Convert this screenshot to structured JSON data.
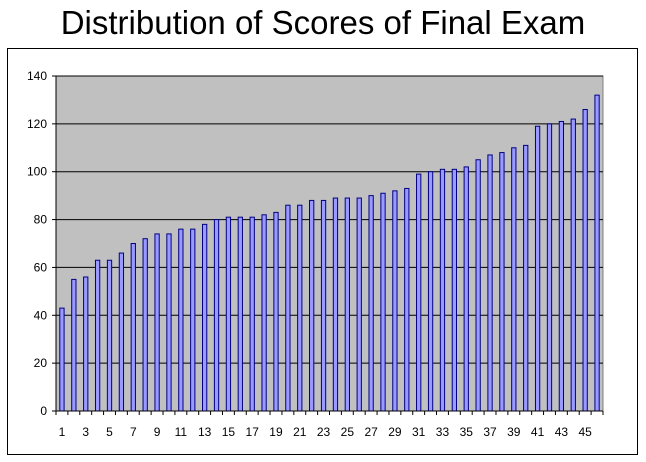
{
  "chart_data": {
    "type": "bar",
    "title": "Distribution of Scores of Final Exam",
    "xlabel": "",
    "ylabel": "",
    "ylim": [
      0,
      140
    ],
    "yticks": [
      0,
      20,
      40,
      60,
      80,
      100,
      120,
      140
    ],
    "grid": true,
    "legend": "none",
    "plot_background": "#c0c0c0",
    "bar_fill": "#9999ff",
    "bar_stroke": "#000080",
    "categories": [
      "1",
      "2",
      "3",
      "4",
      "5",
      "6",
      "7",
      "8",
      "9",
      "10",
      "11",
      "12",
      "13",
      "14",
      "15",
      "16",
      "17",
      "18",
      "19",
      "20",
      "21",
      "22",
      "23",
      "24",
      "25",
      "26",
      "27",
      "28",
      "29",
      "30",
      "31",
      "32",
      "33",
      "34",
      "35",
      "36",
      "37",
      "38",
      "39",
      "40",
      "41",
      "42",
      "43",
      "44",
      "45",
      "46"
    ],
    "x_tick_labels": [
      "1",
      "3",
      "5",
      "7",
      "9",
      "11",
      "13",
      "15",
      "17",
      "19",
      "21",
      "23",
      "25",
      "27",
      "29",
      "31",
      "33",
      "35",
      "37",
      "39",
      "41",
      "43",
      "45"
    ],
    "values": [
      43,
      55,
      56,
      63,
      63,
      66,
      70,
      72,
      74,
      74,
      76,
      76,
      78,
      80,
      81,
      81,
      81,
      82,
      83,
      86,
      86,
      88,
      88,
      89,
      89,
      89,
      90,
      91,
      92,
      93,
      99,
      100,
      101,
      101,
      102,
      105,
      107,
      108,
      110,
      111,
      119,
      120,
      121,
      122,
      126,
      132
    ]
  }
}
